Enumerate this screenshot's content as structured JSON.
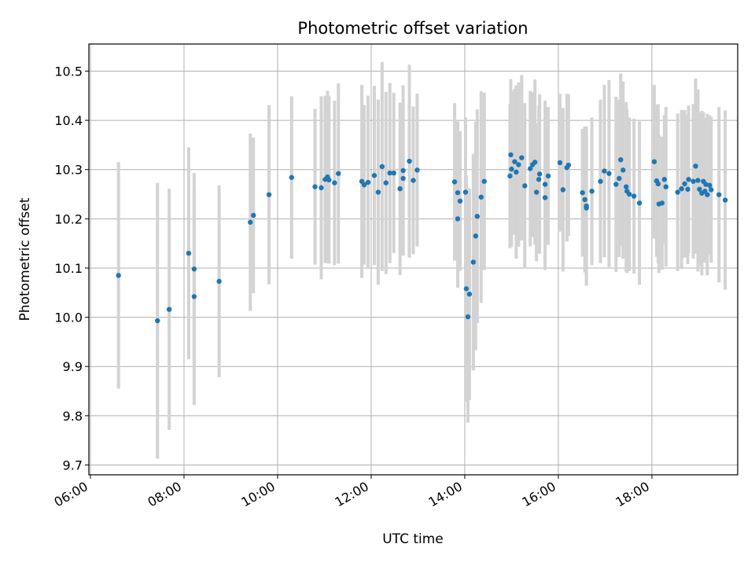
{
  "chart_data": {
    "type": "scatter",
    "title": "Photometric offset variation",
    "xlabel": "UTC time",
    "ylabel": "Photometric offset",
    "x_ticks": [
      "06:00",
      "08:00",
      "10:00",
      "12:00",
      "14:00",
      "16:00",
      "18:00"
    ],
    "y_ticks": [
      "9.7",
      "9.8",
      "9.9",
      "10.0",
      "10.1",
      "10.2",
      "10.3",
      "10.4",
      "10.5"
    ],
    "xlim": [
      "05:58",
      "19:50"
    ],
    "ylim": [
      9.68,
      10.555
    ],
    "grid": true,
    "colors": {
      "point": "#1f77b4",
      "errorbar": "#d3d3d3",
      "grid": "#b0b0b0"
    },
    "x": [
      "06:36",
      "07:26",
      "07:41",
      "08:06",
      "08:13",
      "08:13",
      "08:45",
      "09:25",
      "09:29",
      "09:49",
      "10:18",
      "10:48",
      "10:56",
      "11:01",
      "11:04",
      "11:06",
      "11:13",
      "11:18",
      "11:48",
      "11:51",
      "11:56",
      "12:04",
      "12:09",
      "12:14",
      "12:19",
      "12:24",
      "12:29",
      "12:37",
      "12:41",
      "12:41",
      "12:49",
      "12:54",
      "12:59",
      "13:47",
      "13:51",
      "13:51",
      "13:54",
      "14:01",
      "14:02",
      "14:04",
      "14:06",
      "14:11",
      "14:14",
      "14:16",
      "14:21",
      "14:25",
      "14:58",
      "14:59",
      "15:00",
      "15:04",
      "15:06",
      "15:09",
      "15:13",
      "15:17",
      "15:24",
      "15:27",
      "15:30",
      "15:32",
      "15:35",
      "15:36",
      "15:43",
      "15:43",
      "15:47",
      "16:02",
      "16:06",
      "16:11",
      "16:13",
      "16:31",
      "16:34",
      "16:36",
      "16:36",
      "16:43",
      "16:54",
      "16:59",
      "17:05",
      "17:14",
      "17:18",
      "17:20",
      "17:23",
      "17:27",
      "17:28",
      "17:31",
      "17:37",
      "17:44",
      "18:03",
      "18:06",
      "18:08",
      "18:09",
      "18:13",
      "18:16",
      "18:18",
      "18:33",
      "18:38",
      "18:42",
      "18:46",
      "18:47",
      "18:53",
      "18:56",
      "18:59",
      "19:01",
      "19:04",
      "19:06",
      "19:08",
      "19:09",
      "19:11",
      "19:14",
      "19:16",
      "19:26",
      "19:34"
    ],
    "values": [
      10.085,
      9.993,
      10.016,
      10.13,
      10.042,
      10.098,
      10.073,
      10.193,
      10.207,
      10.249,
      10.284,
      10.265,
      10.263,
      10.28,
      10.285,
      10.279,
      10.273,
      10.292,
      10.276,
      10.269,
      10.274,
      10.288,
      10.254,
      10.306,
      10.273,
      10.293,
      10.293,
      10.261,
      10.282,
      10.298,
      10.317,
      10.278,
      10.299,
      10.275,
      10.253,
      10.2,
      10.236,
      10.254,
      10.058,
      10.001,
      10.047,
      10.112,
      10.165,
      10.205,
      10.244,
      10.276,
      10.287,
      10.33,
      10.301,
      10.316,
      10.295,
      10.31,
      10.324,
      10.267,
      10.302,
      10.31,
      10.315,
      10.254,
      10.28,
      10.291,
      10.243,
      10.27,
      10.287,
      10.314,
      10.259,
      10.304,
      10.309,
      10.253,
      10.239,
      10.226,
      10.222,
      10.256,
      10.276,
      10.297,
      10.292,
      10.27,
      10.282,
      10.32,
      10.299,
      10.265,
      10.256,
      10.25,
      10.246,
      10.232,
      10.316,
      10.277,
      10.271,
      10.23,
      10.232,
      10.28,
      10.265,
      10.254,
      10.261,
      10.271,
      10.26,
      10.28,
      10.276,
      10.307,
      10.278,
      10.26,
      10.252,
      10.276,
      10.256,
      10.27,
      10.249,
      10.268,
      10.259,
      10.249,
      10.238
    ],
    "errors": [
      0.23,
      0.28,
      0.245,
      0.215,
      0.22,
      0.195,
      0.195,
      0.18,
      0.158,
      0.182,
      0.165,
      0.158,
      0.186,
      0.17,
      0.175,
      0.17,
      0.167,
      0.183,
      0.196,
      0.162,
      0.176,
      0.182,
      0.188,
      0.212,
      0.185,
      0.183,
      0.163,
      0.175,
      0.156,
      0.173,
      0.196,
      0.15,
      0.155,
      0.16,
      0.145,
      0.14,
      0.142,
      0.152,
      0.23,
      0.215,
      0.215,
      0.22,
      0.232,
      0.217,
      0.215,
      0.18,
      0.147,
      0.154,
      0.158,
      0.148,
      0.176,
      0.167,
      0.168,
      0.168,
      0.158,
      0.147,
      0.168,
      0.14,
      0.15,
      0.162,
      0.147,
      0.17,
      0.14,
      0.14,
      0.166,
      0.15,
      0.144,
      0.13,
      0.148,
      0.162,
      0.152,
      0.15,
      0.166,
      0.175,
      0.19,
      0.178,
      0.16,
      0.175,
      0.18,
      0.172,
      0.166,
      0.156,
      0.157,
      0.166,
      0.156,
      0.154,
      0.162,
      0.14,
      0.135,
      0.13,
      0.162,
      0.16,
      0.16,
      0.15,
      0.152,
      0.15,
      0.157,
      0.178,
      0.185,
      0.156,
      0.167,
      0.14,
      0.145,
      0.135,
      0.164,
      0.142,
      0.148,
      0.178,
      0.182
    ]
  }
}
